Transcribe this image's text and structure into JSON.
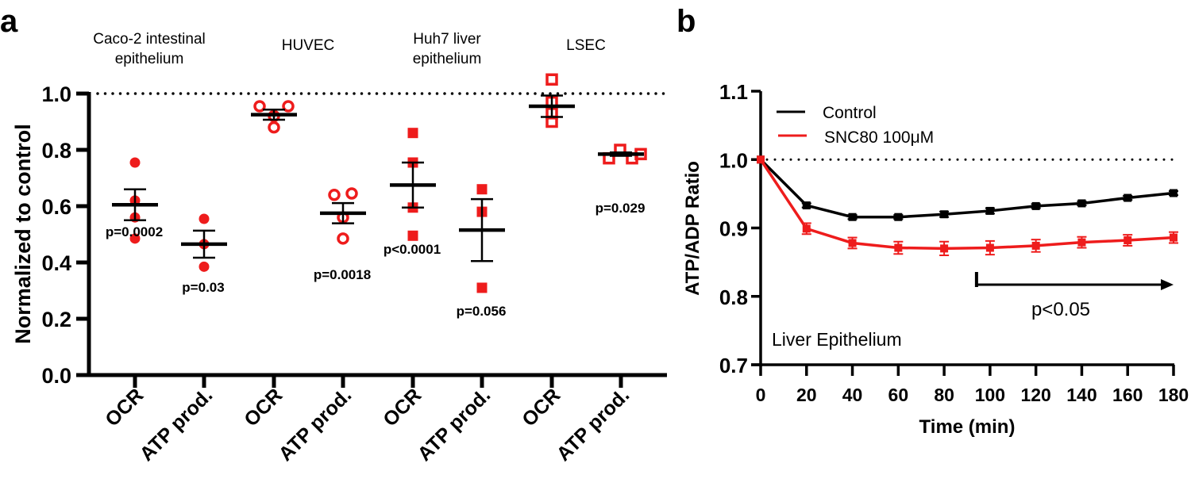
{
  "chart_data": [
    {
      "panel_label": "a",
      "type": "scatter",
      "ylabel": "Normalized to control",
      "ylim": [
        0,
        1.0
      ],
      "yticks": [
        "0.0",
        "0.2",
        "0.4",
        "0.6",
        "0.8",
        "1.0"
      ],
      "reference_line": 1.0,
      "groups": [
        {
          "title_lines": [
            "Caco-2 intestinal",
            "epithelium"
          ]
        },
        {
          "title_lines": [
            "HUVEC"
          ]
        },
        {
          "title_lines": [
            "Huh7  liver",
            "epithelium"
          ]
        },
        {
          "title_lines": [
            "LSEC"
          ]
        }
      ],
      "categories": [
        "OCR",
        "ATP prod.",
        "OCR",
        "ATP prod.",
        "OCR",
        "ATP prod.",
        "OCR",
        "ATP prod."
      ],
      "series": [
        {
          "group": 0,
          "category": "OCR",
          "marker": "filled-circle",
          "points": [
            0.755,
            0.62,
            0.56,
            0.485
          ],
          "mean": 0.605,
          "sem": 0.055,
          "p_label": "p=0.0002"
        },
        {
          "group": 0,
          "category": "ATP prod.",
          "marker": "filled-circle",
          "points": [
            0.555,
            0.465,
            0.385
          ],
          "mean": 0.465,
          "sem": 0.048,
          "p_label": "p=0.03"
        },
        {
          "group": 1,
          "category": "OCR",
          "marker": "open-circle",
          "points": [
            0.955,
            0.955,
            0.92,
            0.88
          ],
          "mean": 0.925,
          "sem": 0.018,
          "p_label": ""
        },
        {
          "group": 1,
          "category": "ATP prod.",
          "marker": "open-circle",
          "points": [
            0.64,
            0.645,
            0.56,
            0.485
          ],
          "mean": 0.575,
          "sem": 0.036,
          "p_label": "p=0.0018"
        },
        {
          "group": 2,
          "category": "OCR",
          "marker": "filled-square",
          "points": [
            0.86,
            0.755,
            0.595,
            0.495
          ],
          "mean": 0.675,
          "sem": 0.08,
          "p_label": "p<0.0001"
        },
        {
          "group": 2,
          "category": "ATP prod.",
          "marker": "filled-square",
          "points": [
            0.66,
            0.58,
            0.31
          ],
          "mean": 0.515,
          "sem": 0.11,
          "p_label": "p=0.056"
        },
        {
          "group": 3,
          "category": "OCR",
          "marker": "open-square",
          "points": [
            1.05,
            0.97,
            0.93,
            0.9
          ],
          "mean": 0.955,
          "sem": 0.038,
          "p_label": ""
        },
        {
          "group": 3,
          "category": "ATP prod.",
          "marker": "open-square",
          "points": [
            0.77,
            0.8,
            0.77,
            0.785
          ],
          "mean": 0.785,
          "sem": 0.006,
          "p_label": "p=0.029"
        }
      ]
    },
    {
      "panel_label": "b",
      "type": "line",
      "xlabel": "Time (min)",
      "ylabel": "ATP/ADP Ratio",
      "xlim": [
        0,
        180
      ],
      "ylim": [
        0.7,
        1.1
      ],
      "xticks": [
        "0",
        "20",
        "40",
        "60",
        "80",
        "100",
        "120",
        "140",
        "160",
        "180"
      ],
      "yticks": [
        "0.7",
        "0.8",
        "0.9",
        "1.0",
        "1.1"
      ],
      "reference_line": 1.0,
      "x": [
        0,
        20,
        40,
        60,
        80,
        100,
        120,
        140,
        160,
        180
      ],
      "series": [
        {
          "name": "Control",
          "color": "#000000",
          "values": [
            1.0,
            0.933,
            0.916,
            0.916,
            0.92,
            0.925,
            0.932,
            0.936,
            0.944,
            0.951
          ],
          "err": [
            0,
            0.003,
            0.003,
            0.003,
            0.004,
            0.004,
            0.003,
            0.003,
            0.003,
            0.003
          ]
        },
        {
          "name": "SNC80 100μM",
          "color": "#ee1c1c",
          "values": [
            1.0,
            0.899,
            0.878,
            0.871,
            0.87,
            0.871,
            0.874,
            0.879,
            0.882,
            0.886
          ],
          "err": [
            0,
            0.008,
            0.008,
            0.009,
            0.01,
            0.01,
            0.009,
            0.008,
            0.008,
            0.008
          ]
        }
      ],
      "legend": [
        "Control",
        "SNC80 100μM"
      ],
      "legend_position": "top-left",
      "annotations": {
        "significance": "p<0.05",
        "significance_start_x": 100,
        "panel_note": "Liver Epithelium"
      }
    }
  ]
}
